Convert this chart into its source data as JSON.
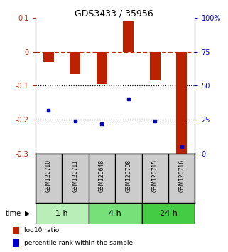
{
  "title": "GDS3433 / 35956",
  "samples": [
    "GSM120710",
    "GSM120711",
    "GSM120648",
    "GSM120708",
    "GSM120715",
    "GSM120716"
  ],
  "groups": [
    {
      "label": "1 h",
      "samples": [
        0,
        1
      ],
      "color": "#b8eeb8"
    },
    {
      "label": "4 h",
      "samples": [
        2,
        3
      ],
      "color": "#78e078"
    },
    {
      "label": "24 h",
      "samples": [
        4,
        5
      ],
      "color": "#44cc44"
    }
  ],
  "log10_ratio": [
    -0.03,
    -0.065,
    -0.095,
    0.09,
    -0.085,
    -0.305
  ],
  "percentile_rank": [
    32,
    24,
    22,
    40,
    24,
    5
  ],
  "ylim_left": [
    -0.3,
    0.1
  ],
  "ylim_right": [
    0,
    100
  ],
  "bar_color": "#bb2200",
  "dot_color": "#0000cc",
  "ref_line_color": "#bb2200",
  "grid_line_color": "#000000",
  "background_color": "#ffffff",
  "plot_bg_color": "#ffffff",
  "sample_bg_color": "#cccccc",
  "yticks_left": [
    -0.3,
    -0.2,
    -0.1,
    0,
    0.1
  ],
  "yticks_right": [
    0,
    25,
    50,
    75,
    100
  ]
}
